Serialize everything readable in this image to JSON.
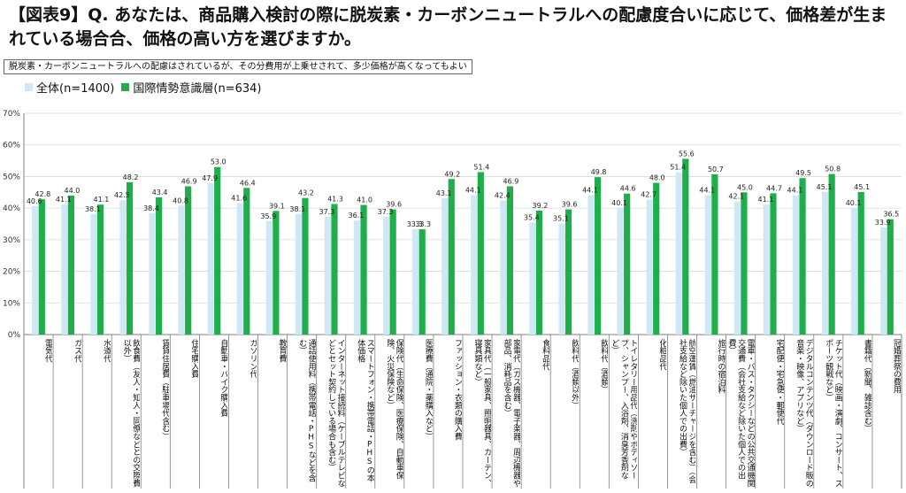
{
  "header": {
    "title": "【図表9】Q. あなたは、商品購入検討の際に脱炭素・カーボンニュートラルへの配慮度合いに応じて、価格差が生まれている場合合、価格の高い方を選びますか。",
    "note": "脱炭素・カーボンニュートラルへの配慮はされているが、その分費用が上乗せされて、多少価格が高くなってもよい"
  },
  "colors": {
    "series1": "#cfe8f6",
    "series2": "#1fae4b",
    "axis": "#7f7f7f",
    "grid": "#d9d9d9"
  },
  "chart_data": {
    "type": "bar",
    "ylim": [
      0,
      70
    ],
    "yticks": [
      "0%",
      "10%",
      "20%",
      "30%",
      "40%",
      "50%",
      "60%",
      "70%"
    ],
    "legend_position": "top-left",
    "grid": true,
    "categories": [
      "電気代",
      "ガス代",
      "水道代",
      "飲食費（友人・知人・同僚などとの交際費以外）",
      "賃貸住居費（駐車場代含む）",
      "住宅購入費",
      "自動車・バイク購入費",
      "ガソリン代",
      "教育費",
      "通話使用料（携帯電話・PHSなどを含む）",
      "インターネット接続料（ケーブルテレビなどとセット契約している場合も含む）",
      "スマートフォン・携帯電話・PHSの本体価格",
      "保険代（生命保険、医療保険、自動車保険、火災保険など）",
      "医療費（通院・薬購入など）",
      "ファッション・衣類の購入費",
      "家具代（一般家具、照明器具、カーテン、寝具類など）",
      "家電代（ガス機器、電子楽器、周辺機器や部品、消耗品を含む）",
      "食料品代",
      "飲料代（酒類以外）",
      "飲料代（酒類）",
      "トイレタリー用品代（洗剤やボディソープ、シャンプー、入浴剤、消臭芳香剤など）",
      "化粧品代",
      "航空運賃（燃油サーチャージを含む）（会社支給など除いた個人での出費）",
      "旅行時の宿泊料",
      "電車・バス・タクシーなどの公共交通機関交通費（会社支給など除いた個人での出費）",
      "宅配便・宅急便・郵便代",
      "デジタルコンテンツ代（ダウンロード販の音楽・映像、アプリなど）",
      "チケット代（映画・演劇、コンサート、スポーツ観戦など）",
      "書籍代（新聞、雑誌含む）",
      "冠婚葬祭の費用"
    ],
    "series": [
      {
        "name": "全体(n=1400)",
        "values": [
          40.6,
          41.1,
          38.1,
          42.5,
          38.4,
          40.8,
          47.9,
          41.6,
          35.9,
          38.1,
          37.3,
          36.1,
          37.3,
          33.3,
          43.1,
          44.1,
          42.4,
          35.4,
          35.1,
          44.1,
          40.1,
          42.7,
          51.4,
          44.1,
          42.1,
          41.1,
          44.1,
          45.1,
          40.1,
          33.9
        ],
        "labels": [
          "40.6",
          "41.1",
          "38.1",
          "42.5",
          "38.4",
          "40.8",
          "47.9",
          "41.6",
          "35.9",
          "38.1",
          "37.3",
          "36.1",
          "37.3",
          "33.3",
          "43.1",
          "44.1",
          "42.4",
          "35.4",
          "35.1",
          "44.1",
          "40.1",
          "42.7",
          "51.4",
          "44.1",
          "42.1",
          "41.1",
          "44.1",
          "45.1",
          "40.1",
          "33.9"
        ]
      },
      {
        "name": "国際情勢意識層(n=634)",
        "values": [
          42.8,
          44.0,
          41.1,
          48.2,
          43.4,
          46.9,
          53.0,
          46.4,
          39.1,
          43.2,
          41.3,
          41.0,
          39.6,
          33.3,
          49.2,
          51.4,
          46.9,
          39.2,
          39.6,
          49.8,
          44.6,
          48.0,
          55.6,
          50.7,
          45.0,
          44.7,
          49.5,
          50.8,
          45.1,
          36.5
        ],
        "labels": [
          "42.8",
          "44.0",
          "41.1",
          "48.2",
          "43.4",
          "46.9",
          "53.0",
          "46.4",
          "39.1",
          "43.2",
          "41.3",
          "41.0",
          "39.6",
          "33.3",
          "49.2",
          "51.4",
          "46.9",
          "39.2",
          "39.6",
          "49.8",
          "44.6",
          "48.0",
          "55.6",
          "50.7",
          "45.0",
          "44.7",
          "49.5",
          "50.8",
          "45.1",
          "36.5"
        ]
      }
    ]
  }
}
